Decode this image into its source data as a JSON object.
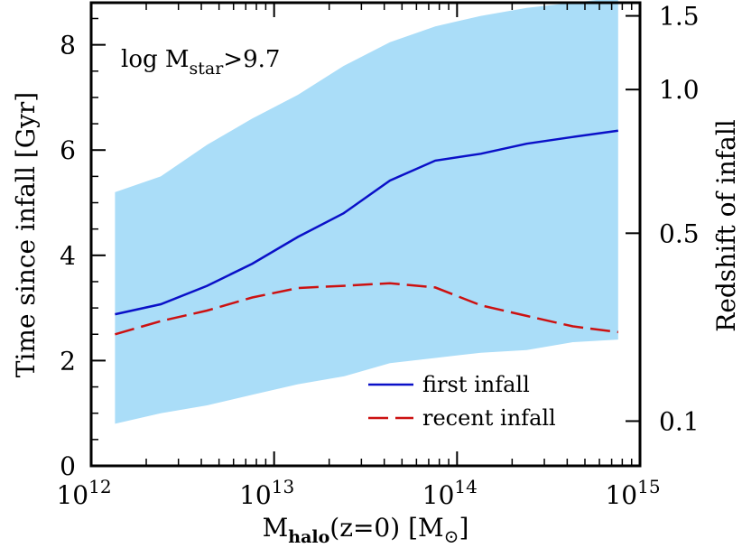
{
  "chart_data": {
    "type": "line",
    "xlabel": {
      "main": "M",
      "sub": "halo",
      "rest": "(z=0)  [M",
      "sun": "⊙",
      "close": "]"
    },
    "ylabel": "Time since infall [Gyr]",
    "y2label": "Redshift of infall",
    "annotation": {
      "prefix": "log M",
      "sub": "star",
      "suffix": ">9.7"
    },
    "x_scale": "log",
    "xlim": [
      1000000000000.0,
      1000000000000000.0
    ],
    "ylim": [
      0,
      8.8
    ],
    "x_ticks": [
      {
        "value": 1000000000000.0,
        "base": "10",
        "exp": "12"
      },
      {
        "value": 10000000000000.0,
        "base": "10",
        "exp": "13"
      },
      {
        "value": 100000000000000.0,
        "base": "10",
        "exp": "14"
      },
      {
        "value": 1000000000000000.0,
        "base": "10",
        "exp": "15"
      }
    ],
    "y_ticks": [
      {
        "value": 0,
        "label": "0"
      },
      {
        "value": 2,
        "label": "2"
      },
      {
        "value": 4,
        "label": "4"
      },
      {
        "value": 6,
        "label": "6"
      },
      {
        "value": 8,
        "label": "8"
      }
    ],
    "y2_ticks": [
      {
        "label": "0.1",
        "y_value": 0.85
      },
      {
        "label": "0.5",
        "y_value": 4.42
      },
      {
        "label": "1.0",
        "y_value": 7.15
      },
      {
        "label": "1.5",
        "y_value": 8.55
      }
    ],
    "band": {
      "x": [
        1350000000000.0,
        2400000000000.0,
        4300000000000.0,
        7600000000000.0,
        13500000000000.0,
        24000000000000.0,
        43000000000000.0,
        76000000000000.0,
        135000000000000.0,
        240000000000000.0,
        430000000000000.0,
        760000000000000.0
      ],
      "upper": [
        5.2,
        5.5,
        6.1,
        6.6,
        7.05,
        7.6,
        8.05,
        8.35,
        8.55,
        8.7,
        8.8,
        8.9
      ],
      "lower": [
        0.8,
        1.0,
        1.15,
        1.35,
        1.55,
        1.7,
        1.95,
        2.05,
        2.15,
        2.2,
        2.35,
        2.4
      ],
      "color": "#aaddf8"
    },
    "series": [
      {
        "name": "first infall",
        "color": "#0a10c8",
        "dash": "solid",
        "x": [
          1350000000000.0,
          2400000000000.0,
          4300000000000.0,
          7600000000000.0,
          13500000000000.0,
          24000000000000.0,
          43000000000000.0,
          76000000000000.0,
          135000000000000.0,
          240000000000000.0,
          430000000000000.0,
          760000000000000.0
        ],
        "values": [
          2.88,
          3.07,
          3.42,
          3.84,
          4.35,
          4.8,
          5.42,
          5.8,
          5.93,
          6.12,
          6.25,
          6.37
        ]
      },
      {
        "name": "recent infall",
        "color": "#cc1111",
        "dash": "dashed",
        "x": [
          1350000000000.0,
          2400000000000.0,
          4300000000000.0,
          7600000000000.0,
          13500000000000.0,
          24000000000000.0,
          43000000000000.0,
          76000000000000.0,
          135000000000000.0,
          240000000000000.0,
          430000000000000.0,
          760000000000000.0
        ],
        "values": [
          2.5,
          2.75,
          2.95,
          3.2,
          3.38,
          3.42,
          3.47,
          3.39,
          3.05,
          2.85,
          2.65,
          2.54
        ]
      }
    ],
    "legend_placement": "bottom-right"
  }
}
